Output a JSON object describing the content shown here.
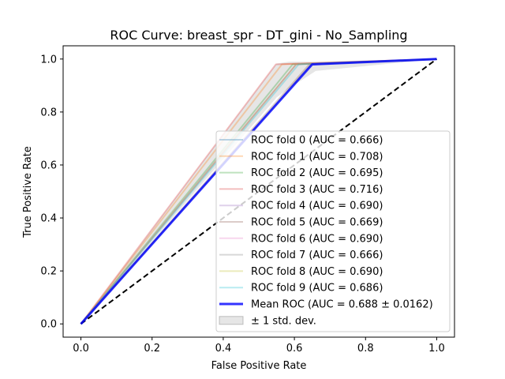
{
  "chart_data": {
    "type": "line",
    "title": "ROC Curve: breast_spr - DT_gini - No_Sampling",
    "xlabel": "False Positive Rate",
    "ylabel": "True Positive Rate",
    "xlim": [
      -0.05,
      1.05
    ],
    "ylim": [
      -0.05,
      1.05
    ],
    "xticks": [
      0.0,
      0.2,
      0.4,
      0.6,
      0.8,
      1.0
    ],
    "yticks": [
      0.0,
      0.2,
      0.4,
      0.6,
      0.8,
      1.0
    ],
    "xtick_labels": [
      "0.0",
      "0.2",
      "0.4",
      "0.6",
      "0.8",
      "1.0"
    ],
    "ytick_labels": [
      "0.0",
      "0.2",
      "0.4",
      "0.6",
      "0.8",
      "1.0"
    ],
    "grid": false,
    "legend_position": "lower-right",
    "series": [
      {
        "name": "ROC fold 0 (AUC = 0.666)",
        "color": "#1f77b4",
        "alpha": 0.3,
        "x": [
          0,
          0.648,
          1
        ],
        "y": [
          0,
          0.98,
          1
        ]
      },
      {
        "name": "ROC fold 1 (AUC = 0.708)",
        "color": "#ff7f0e",
        "alpha": 0.3,
        "x": [
          0,
          0.565,
          1
        ],
        "y": [
          0,
          0.98,
          1
        ]
      },
      {
        "name": "ROC fold 2 (AUC = 0.695)",
        "color": "#2ca02c",
        "alpha": 0.3,
        "x": [
          0,
          0.595,
          1
        ],
        "y": [
          0,
          0.98,
          1
        ]
      },
      {
        "name": "ROC fold 3 (AUC = 0.716)",
        "color": "#d62728",
        "alpha": 0.3,
        "x": [
          0,
          0.548,
          1
        ],
        "y": [
          0,
          0.98,
          1
        ]
      },
      {
        "name": "ROC fold 4 (AUC = 0.690)",
        "color": "#9467bd",
        "alpha": 0.3,
        "x": [
          0,
          0.605,
          1
        ],
        "y": [
          0,
          0.98,
          1
        ]
      },
      {
        "name": "ROC fold 5 (AUC = 0.669)",
        "color": "#8c564b",
        "alpha": 0.3,
        "x": [
          0,
          0.642,
          1
        ],
        "y": [
          0,
          0.98,
          1
        ]
      },
      {
        "name": "ROC fold 6 (AUC = 0.690)",
        "color": "#e377c2",
        "alpha": 0.3,
        "x": [
          0,
          0.605,
          1
        ],
        "y": [
          0,
          0.98,
          1
        ]
      },
      {
        "name": "ROC fold 7 (AUC = 0.666)",
        "color": "#7f7f7f",
        "alpha": 0.3,
        "x": [
          0,
          0.648,
          1
        ],
        "y": [
          0,
          0.98,
          1
        ]
      },
      {
        "name": "ROC fold 8 (AUC = 0.690)",
        "color": "#bcbd22",
        "alpha": 0.3,
        "x": [
          0,
          0.605,
          1
        ],
        "y": [
          0,
          0.98,
          1
        ]
      },
      {
        "name": "ROC fold 9 (AUC = 0.686)",
        "color": "#17becf",
        "alpha": 0.3,
        "x": [
          0,
          0.612,
          1
        ],
        "y": [
          0,
          0.98,
          1
        ]
      }
    ],
    "mean": {
      "name": "Mean ROC (AUC = 0.688 ± 0.0162)",
      "color": "#0000ff",
      "alpha": 0.8,
      "x": [
        0,
        0.65,
        1
      ],
      "y": [
        0,
        0.98,
        1
      ]
    },
    "std_band": {
      "name": "± 1 std. dev.",
      "color": "#808080",
      "alpha": 0.2,
      "x": [
        0,
        0.55,
        0.585,
        0.62,
        0.66,
        1
      ],
      "y_upper": [
        0,
        0.983,
        0.99,
        0.99,
        0.99,
        1
      ],
      "y_lower": [
        0,
        0.855,
        0.89,
        0.92,
        0.955,
        1
      ]
    },
    "chance": {
      "x": [
        0,
        1
      ],
      "y": [
        0,
        1
      ],
      "color": "#000000",
      "style": "dashed"
    }
  }
}
